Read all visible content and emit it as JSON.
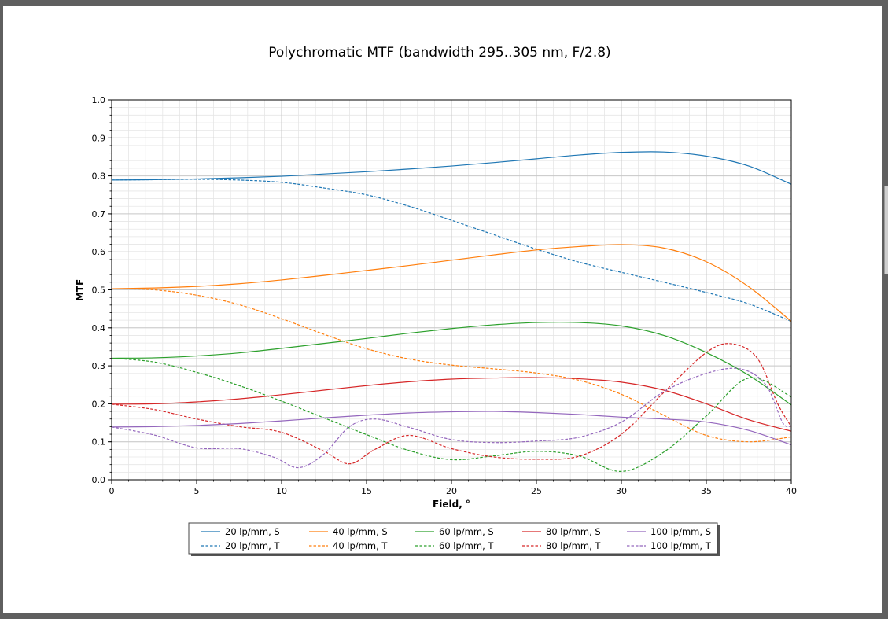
{
  "chart_data": {
    "type": "line",
    "title": "Polychromatic MTF (bandwidth 295..305 nm, F/2.8)",
    "xlabel": "Field, °",
    "ylabel": "MTF",
    "xlim": [
      0,
      40
    ],
    "ylim": [
      0,
      1
    ],
    "xticks": [
      "0",
      "5",
      "10",
      "15",
      "20",
      "25",
      "30",
      "35",
      "40"
    ],
    "yticks": [
      "0.0",
      "0.1",
      "0.2",
      "0.3",
      "0.4",
      "0.5",
      "0.6",
      "0.7",
      "0.8",
      "0.9",
      "1.0"
    ],
    "grid": true,
    "legend_position": "bottom",
    "series": [
      {
        "name": "20 lp/mm, S",
        "color": "#1f77b4",
        "dash": false,
        "x": [
          0,
          2.5,
          5,
          7.5,
          10,
          12.5,
          15,
          17.5,
          20,
          22.5,
          25,
          27.5,
          30,
          32.5,
          35,
          37.5,
          40
        ],
        "y": [
          0.789,
          0.79,
          0.792,
          0.795,
          0.799,
          0.805,
          0.811,
          0.818,
          0.826,
          0.835,
          0.845,
          0.855,
          0.862,
          0.863,
          0.852,
          0.826,
          0.778
        ]
      },
      {
        "name": "20 lp/mm, T",
        "color": "#1f77b4",
        "dash": true,
        "x": [
          0,
          2.5,
          5,
          7.5,
          10,
          12.5,
          15,
          17.5,
          20,
          22.5,
          25,
          27.5,
          30,
          32.5,
          35,
          37.5,
          40
        ],
        "y": [
          0.789,
          0.79,
          0.791,
          0.789,
          0.783,
          0.768,
          0.75,
          0.72,
          0.683,
          0.645,
          0.607,
          0.573,
          0.546,
          0.52,
          0.493,
          0.463,
          0.417
        ]
      },
      {
        "name": "40 lp/mm, S",
        "color": "#ff7f0e",
        "dash": false,
        "x": [
          0,
          2.5,
          5,
          7.5,
          10,
          12.5,
          15,
          17.5,
          20,
          22.5,
          25,
          27.5,
          30,
          32.5,
          35,
          37.5,
          40
        ],
        "y": [
          0.503,
          0.505,
          0.509,
          0.516,
          0.526,
          0.538,
          0.551,
          0.564,
          0.578,
          0.592,
          0.605,
          0.614,
          0.619,
          0.61,
          0.574,
          0.508,
          0.417
        ]
      },
      {
        "name": "40 lp/mm, T",
        "color": "#ff7f0e",
        "dash": true,
        "x": [
          0,
          2.5,
          5,
          7.5,
          10,
          12.5,
          15,
          17.5,
          20,
          22.5,
          25,
          27.5,
          30,
          32.5,
          35,
          37.5,
          40
        ],
        "y": [
          0.503,
          0.5,
          0.486,
          0.461,
          0.424,
          0.383,
          0.345,
          0.318,
          0.302,
          0.292,
          0.281,
          0.262,
          0.225,
          0.17,
          0.117,
          0.1,
          0.113
        ]
      },
      {
        "name": "60 lp/mm, S",
        "color": "#2ca02c",
        "dash": false,
        "x": [
          0,
          2.5,
          5,
          7.5,
          10,
          12.5,
          15,
          17.5,
          20,
          22.5,
          25,
          27.5,
          30,
          32.5,
          35,
          37.5,
          40
        ],
        "y": [
          0.32,
          0.321,
          0.326,
          0.334,
          0.346,
          0.359,
          0.372,
          0.386,
          0.398,
          0.408,
          0.414,
          0.414,
          0.405,
          0.38,
          0.335,
          0.275,
          0.197
        ]
      },
      {
        "name": "60 lp/mm, T",
        "color": "#2ca02c",
        "dash": true,
        "x": [
          0,
          2.5,
          5,
          7.5,
          10,
          12.5,
          15,
          17.5,
          20,
          22.5,
          25,
          27.5,
          30,
          32.5,
          35,
          37.5,
          40
        ],
        "y": [
          0.32,
          0.31,
          0.283,
          0.248,
          0.207,
          0.163,
          0.119,
          0.077,
          0.053,
          0.063,
          0.075,
          0.063,
          0.022,
          0.073,
          0.168,
          0.268,
          0.218
        ]
      },
      {
        "name": "80 lp/mm, S",
        "color": "#d62728",
        "dash": false,
        "x": [
          0,
          2.5,
          5,
          7.5,
          10,
          12.5,
          15,
          17.5,
          20,
          22.5,
          25,
          27.5,
          30,
          32.5,
          35,
          37.5,
          40
        ],
        "y": [
          0.199,
          0.2,
          0.205,
          0.213,
          0.224,
          0.236,
          0.248,
          0.258,
          0.265,
          0.268,
          0.269,
          0.266,
          0.257,
          0.236,
          0.2,
          0.158,
          0.128
        ]
      },
      {
        "name": "80 lp/mm, T",
        "color": "#d62728",
        "dash": true,
        "x": [
          0,
          2.5,
          5,
          7.5,
          10,
          12.5,
          14,
          15.5,
          17.5,
          20,
          22.5,
          25,
          27.5,
          30,
          32.5,
          35,
          36.5,
          38,
          39.2,
          40
        ],
        "y": [
          0.199,
          0.185,
          0.16,
          0.14,
          0.125,
          0.075,
          0.042,
          0.08,
          0.117,
          0.082,
          0.06,
          0.054,
          0.062,
          0.12,
          0.23,
          0.335,
          0.358,
          0.32,
          0.2,
          0.14
        ]
      },
      {
        "name": "100 lp/mm, S",
        "color": "#9467bd",
        "dash": false,
        "x": [
          0,
          2.5,
          5,
          7.5,
          10,
          12.5,
          15,
          17.5,
          20,
          22.5,
          25,
          27.5,
          30,
          32.5,
          35,
          37.5,
          40
        ],
        "y": [
          0.139,
          0.14,
          0.143,
          0.148,
          0.155,
          0.163,
          0.17,
          0.176,
          0.179,
          0.18,
          0.177,
          0.172,
          0.165,
          0.16,
          0.152,
          0.13,
          0.092
        ]
      },
      {
        "name": "100 lp/mm, T",
        "color": "#9467bd",
        "dash": true,
        "x": [
          0,
          2.5,
          5,
          7.5,
          9.5,
          11,
          12.5,
          14,
          15.5,
          17.5,
          20,
          22.5,
          25,
          27.5,
          30,
          32.5,
          35,
          37,
          38.5,
          39.5,
          40
        ],
        "y": [
          0.139,
          0.118,
          0.084,
          0.082,
          0.06,
          0.032,
          0.068,
          0.14,
          0.16,
          0.138,
          0.106,
          0.098,
          0.102,
          0.112,
          0.152,
          0.232,
          0.28,
          0.292,
          0.25,
          0.15,
          0.142
        ]
      }
    ]
  }
}
